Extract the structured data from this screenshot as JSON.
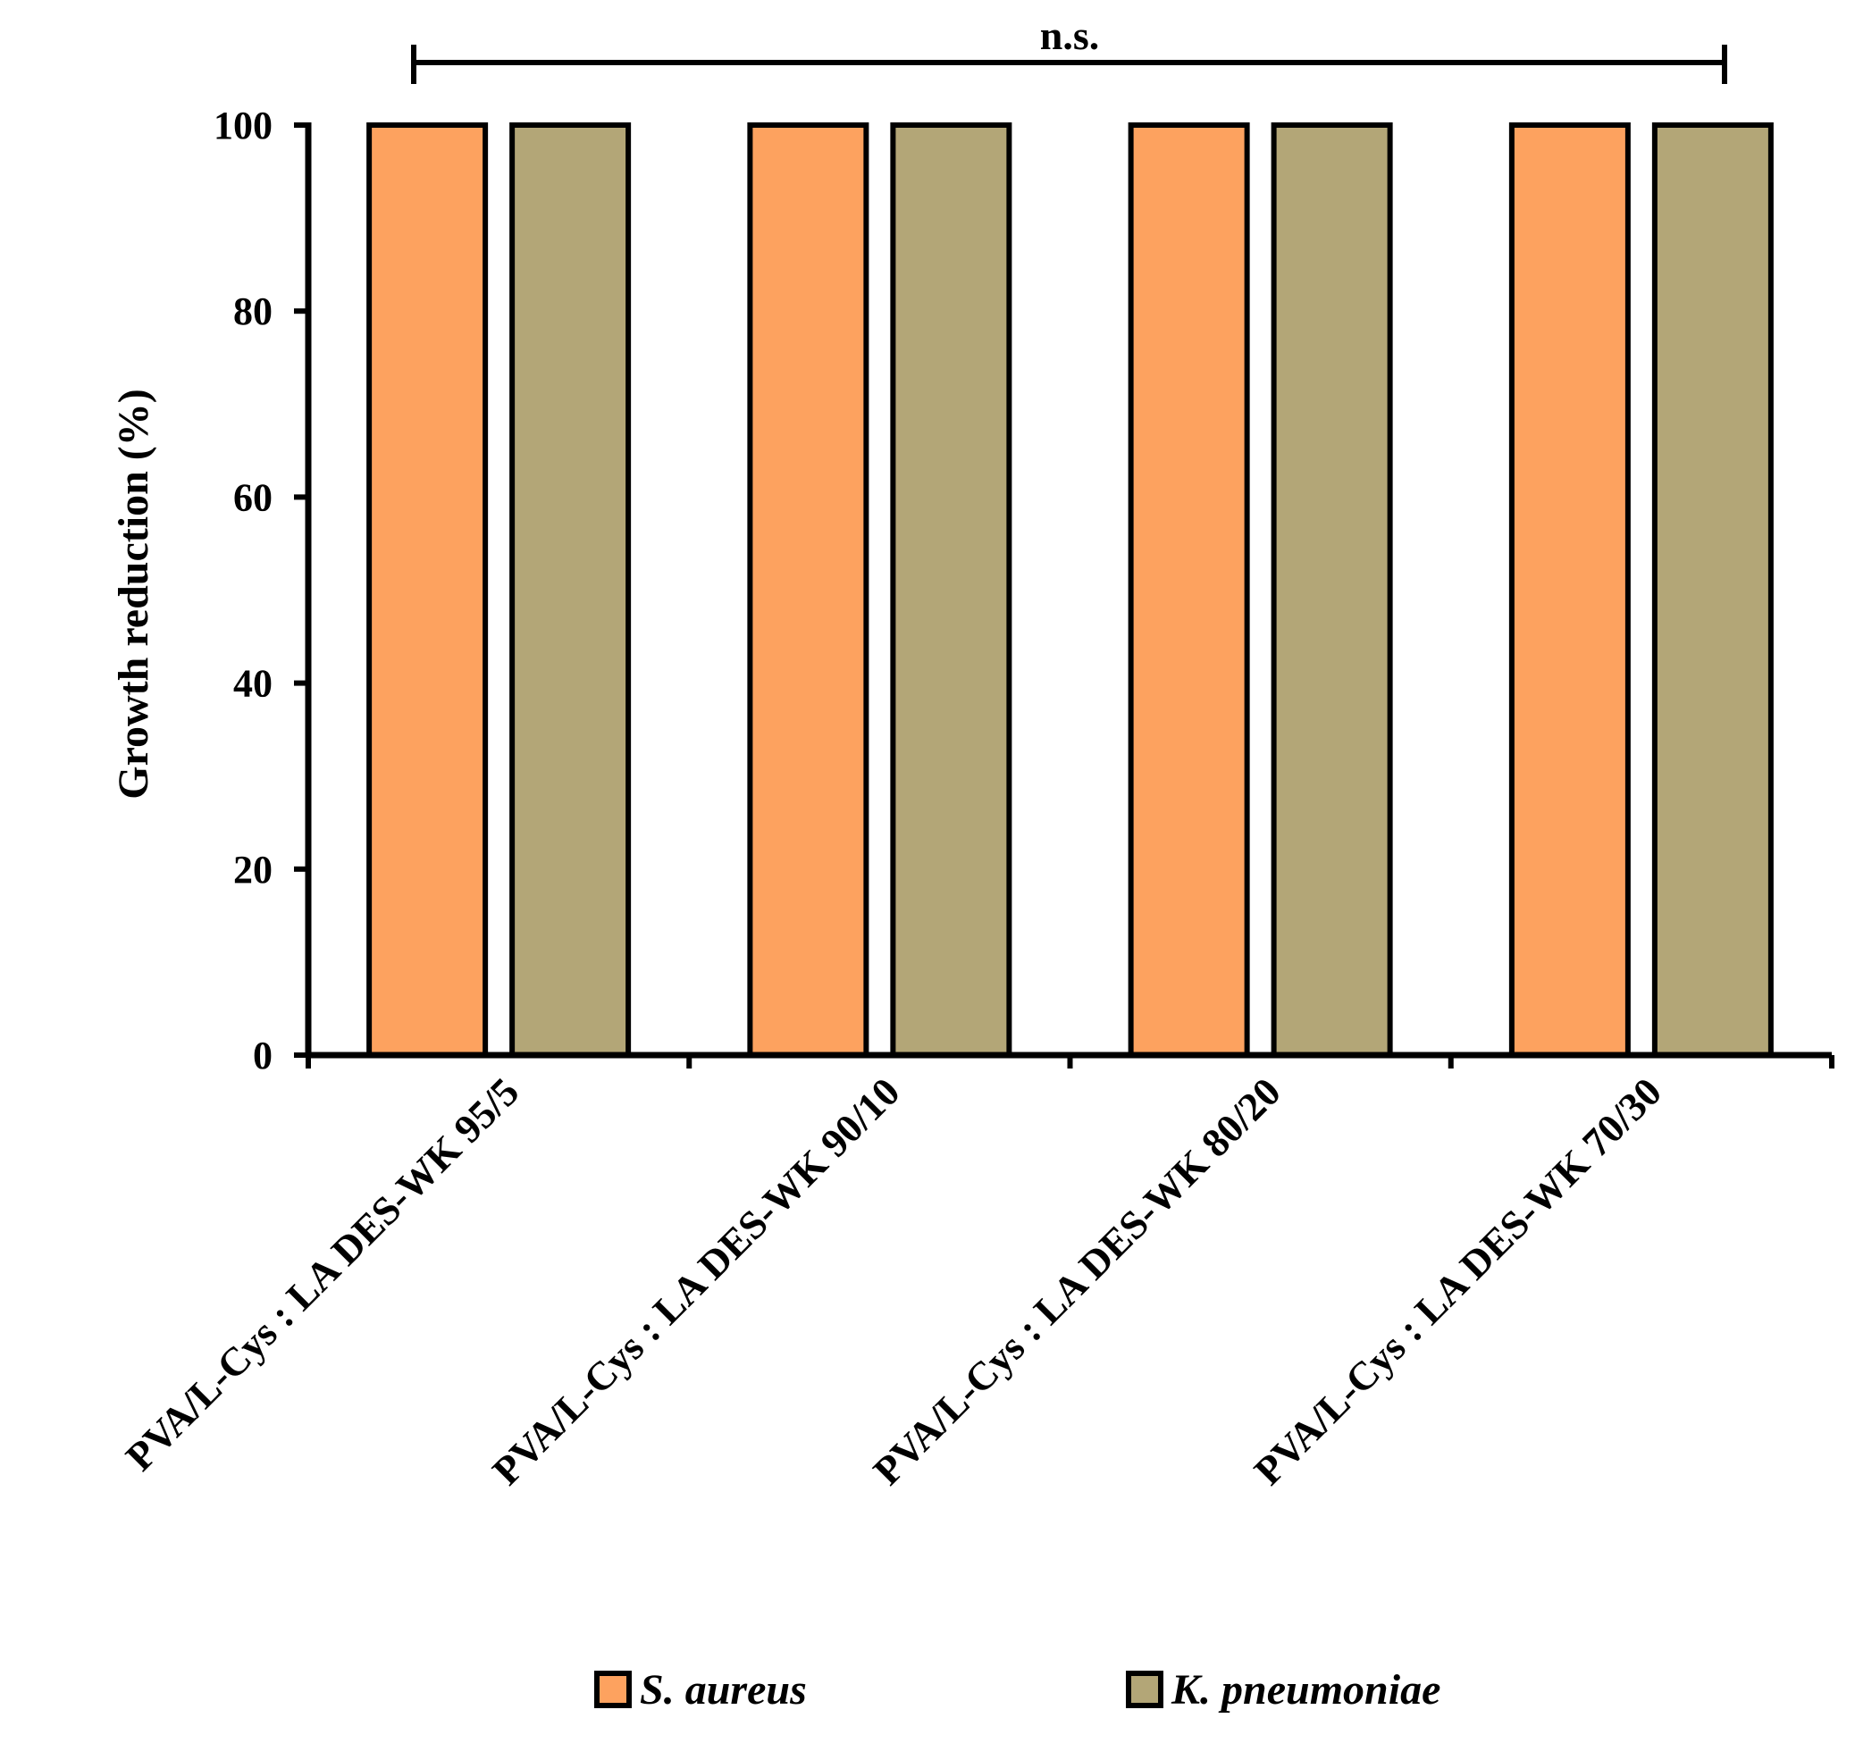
{
  "chart_data": {
    "type": "bar",
    "categories": [
      "PVA/L-Cys : LA DES-WK 95/5",
      "PVA/L-Cys : LA DES-WK 90/10",
      "PVA/L-Cys : LA DES-WK 80/20",
      "PVA/L-Cys : LA DES-WK 70/30"
    ],
    "series": [
      {
        "name": "S. aureus",
        "color": "#FDA25F",
        "values": [
          100,
          100,
          100,
          100
        ]
      },
      {
        "name": "K. pneumoniae",
        "color": "#B3A677",
        "values": [
          100,
          100,
          100,
          100
        ]
      }
    ],
    "title": "",
    "xlabel": "",
    "ylabel": "Growth reduction (%)",
    "ylim": [
      0,
      100
    ],
    "yticks": [
      0,
      20,
      40,
      60,
      80,
      100
    ],
    "grid": false,
    "legend": "bottom",
    "annotation": {
      "text": "n.s.",
      "type": "significance-bracket"
    }
  }
}
